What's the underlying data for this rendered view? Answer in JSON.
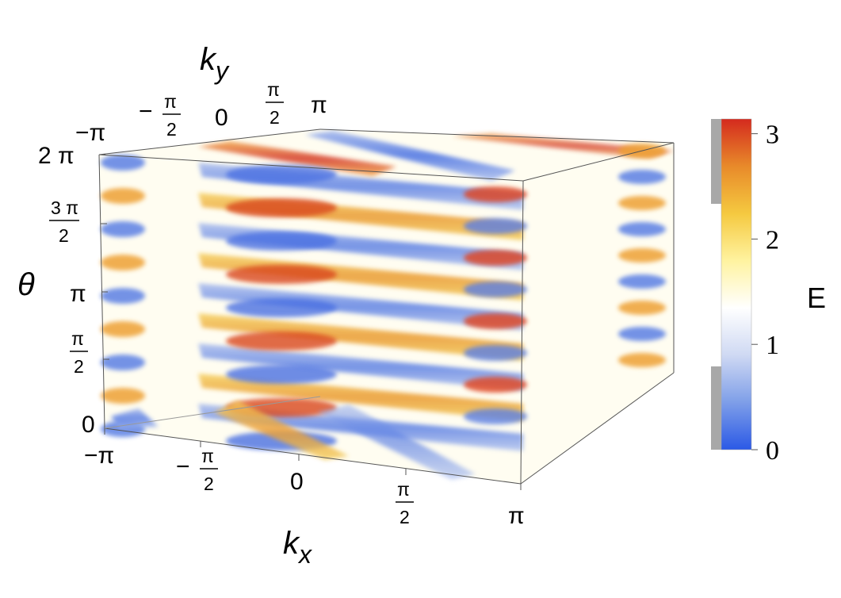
{
  "chart_data": {
    "type": "3d-density",
    "axes": {
      "x": {
        "label": "k",
        "sub": "x",
        "range": [
          "-π",
          "π"
        ],
        "ticks": [
          {
            "text": "−π"
          },
          {
            "sign": "−",
            "num": "π",
            "den": "2"
          },
          {
            "text": "0"
          },
          {
            "num": "π",
            "den": "2"
          },
          {
            "text": "π"
          }
        ]
      },
      "y": {
        "label": "k",
        "sub": "y",
        "range": [
          "-π",
          "π"
        ],
        "ticks": [
          {
            "text": "−π"
          },
          {
            "sign": "−",
            "num": "π",
            "den": "2"
          },
          {
            "text": "0"
          },
          {
            "num": "π",
            "den": "2"
          },
          {
            "text": "π"
          }
        ]
      },
      "z": {
        "label": "θ",
        "range": [
          "0",
          "2π"
        ],
        "ticks": [
          {
            "text": "0"
          },
          {
            "num": "π",
            "den": "2"
          },
          {
            "text": "π"
          },
          {
            "num": "3 π",
            "den": "2"
          },
          {
            "text": "2 π"
          }
        ]
      }
    },
    "colorbar": {
      "label": "E",
      "range": [
        0,
        3.14
      ],
      "ticks": [
        "0",
        "1",
        "2",
        "3"
      ],
      "colors": [
        "#2b59e6",
        "#7e9ee8",
        "#cfd9f3",
        "#ffffff",
        "#fff3a0",
        "#f5c940",
        "#e88a2a",
        "#d42a1e"
      ],
      "gray_bands": [
        [
          0,
          0.7
        ],
        [
          2.5,
          3.14
        ]
      ]
    }
  }
}
